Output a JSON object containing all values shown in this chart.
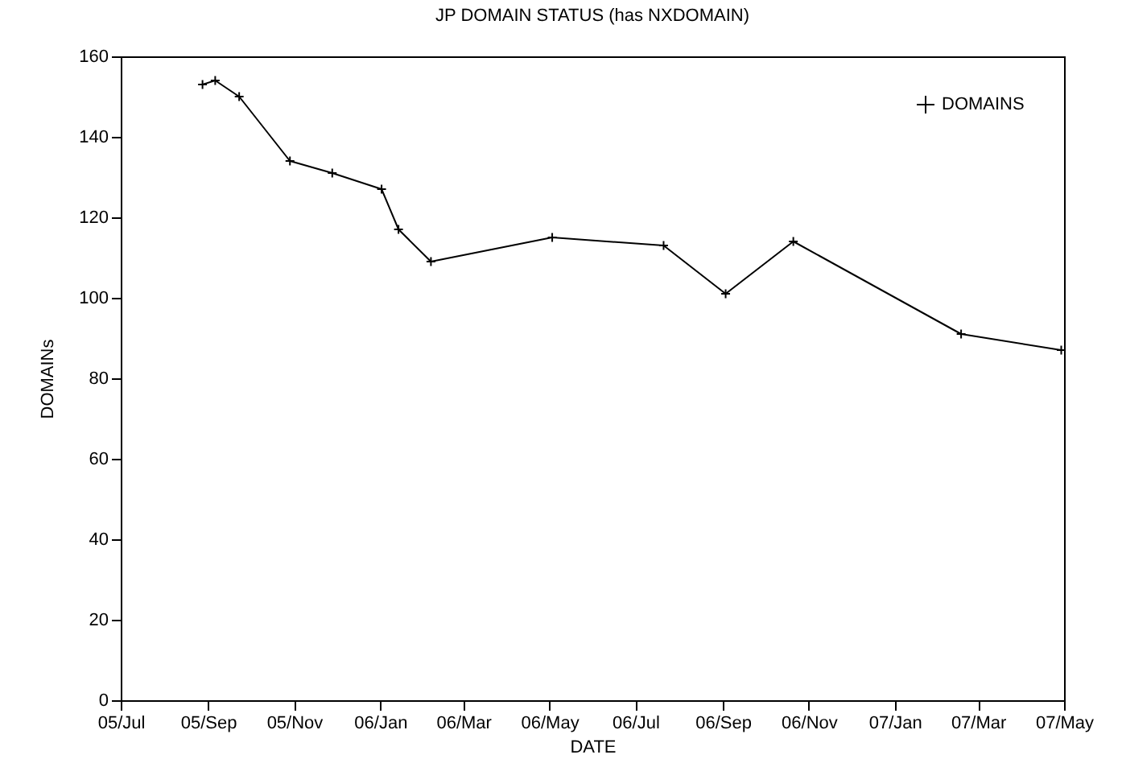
{
  "chart_data": {
    "type": "line",
    "title": "JP DOMAIN STATUS (has NXDOMAIN)",
    "xlabel": "DATE",
    "ylabel": "DOMAINs",
    "x": [
      "2005-08-28",
      "2005-09-06",
      "2005-09-23",
      "2005-10-29",
      "2005-11-28",
      "2006-01-02",
      "2006-01-14",
      "2006-02-06",
      "2006-05-03",
      "2006-07-21",
      "2006-09-03",
      "2006-10-21",
      "2007-02-17",
      "2007-04-29"
    ],
    "series": [
      {
        "name": "DOMAINS",
        "color": "#000000",
        "values": [
          153,
          154,
          150,
          134,
          131,
          127,
          117,
          109,
          115,
          113,
          101,
          114,
          91,
          87
        ]
      }
    ],
    "xlim": [
      "2005-07-01",
      "2007-05-01"
    ],
    "xticks": [
      {
        "value": "2005-07-01",
        "label": "05/Jul"
      },
      {
        "value": "2005-09-01",
        "label": "05/Sep"
      },
      {
        "value": "2005-11-01",
        "label": "05/Nov"
      },
      {
        "value": "2006-01-01",
        "label": "06/Jan"
      },
      {
        "value": "2006-03-01",
        "label": "06/Mar"
      },
      {
        "value": "2006-05-01",
        "label": "06/May"
      },
      {
        "value": "2006-07-01",
        "label": "06/Jul"
      },
      {
        "value": "2006-09-01",
        "label": "06/Sep"
      },
      {
        "value": "2006-11-01",
        "label": "06/Nov"
      },
      {
        "value": "2007-01-01",
        "label": "07/Jan"
      },
      {
        "value": "2007-03-01",
        "label": "07/Mar"
      },
      {
        "value": "2007-05-01",
        "label": "07/May"
      }
    ],
    "ylim": [
      0,
      160
    ],
    "yticks": [
      0,
      20,
      40,
      60,
      80,
      100,
      120,
      140,
      160
    ],
    "legend": "top right",
    "marker": "cross",
    "line_style": "solid"
  }
}
